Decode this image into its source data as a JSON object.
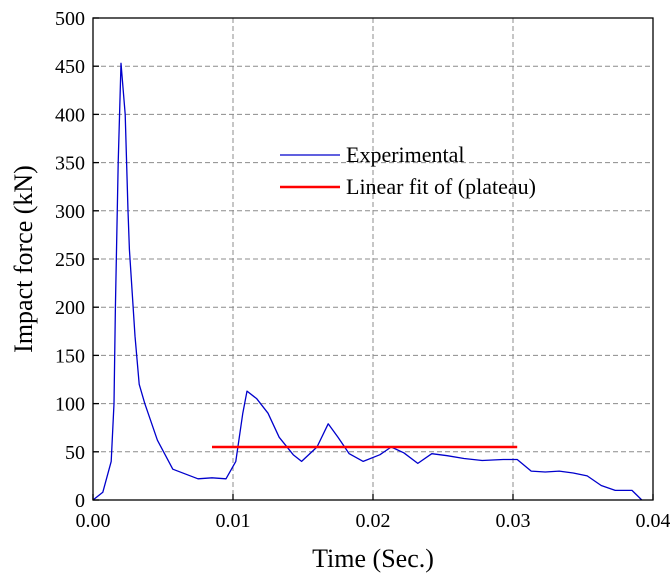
{
  "chart_data": {
    "type": "line",
    "xlabel": "Time (Sec.)",
    "ylabel": "Impact force (kN)",
    "xlim": [
      0.0,
      0.04
    ],
    "ylim": [
      0,
      500
    ],
    "xticks": [
      0.0,
      0.01,
      0.02,
      0.03,
      0.04
    ],
    "xtick_labels": [
      "0.00",
      "0.01",
      "0.02",
      "0.03",
      "0.04"
    ],
    "yticks": [
      0,
      50,
      100,
      150,
      200,
      250,
      300,
      350,
      400,
      450,
      500
    ],
    "ytick_labels": [
      "0",
      "50",
      "100",
      "150",
      "200",
      "250",
      "300",
      "350",
      "400",
      "450",
      "500"
    ],
    "grid": true,
    "legend_position": "upper-center-right",
    "series": [
      {
        "name": "Experimental",
        "color": "#0000cc",
        "x": [
          0.0,
          0.0007,
          0.0013,
          0.0015,
          0.0016,
          0.0018,
          0.002,
          0.0023,
          0.0025,
          0.0026,
          0.0028,
          0.003,
          0.0033,
          0.0037,
          0.0046,
          0.0057,
          0.0075,
          0.0085,
          0.0095,
          0.0102,
          0.0107,
          0.011,
          0.0117,
          0.0125,
          0.0133,
          0.0143,
          0.0149,
          0.016,
          0.0168,
          0.0175,
          0.0183,
          0.0193,
          0.0205,
          0.0213,
          0.0222,
          0.0232,
          0.0242,
          0.0253,
          0.0265,
          0.0278,
          0.0293,
          0.0303,
          0.0313,
          0.0323,
          0.0333,
          0.0343,
          0.0353,
          0.0363,
          0.0373,
          0.0385,
          0.0392
        ],
        "y": [
          0,
          8,
          40,
          100,
          200,
          350,
          453,
          400,
          300,
          260,
          215,
          170,
          120,
          100,
          62,
          32,
          22,
          23,
          22,
          40,
          90,
          113,
          105,
          90,
          65,
          47,
          40,
          55,
          79,
          65,
          48,
          40,
          47,
          55,
          49,
          38,
          48,
          46,
          43,
          41,
          42,
          42,
          30,
          29,
          30,
          28,
          25,
          15,
          10,
          10,
          0
        ]
      },
      {
        "name": "Linear fit of (plateau)",
        "color": "#ff0000",
        "x": [
          0.0085,
          0.0303
        ],
        "y": [
          55,
          55
        ]
      }
    ]
  }
}
